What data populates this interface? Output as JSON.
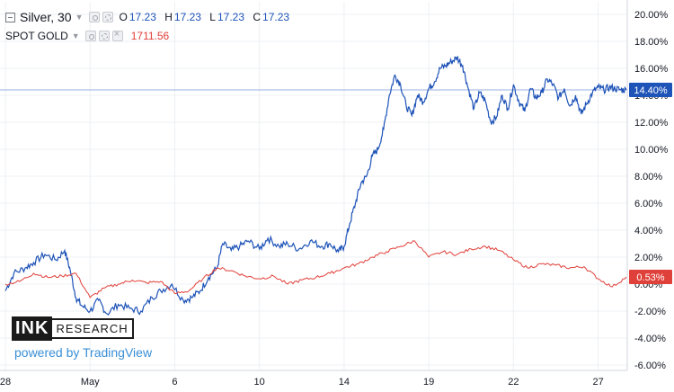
{
  "legend": {
    "silver": {
      "symbol": "Silver, 30",
      "o_label": "O",
      "o": "17.23",
      "h_label": "H",
      "h": "17.23",
      "l_label": "L",
      "l": "17.23",
      "c_label": "C",
      "c": "17.23"
    },
    "gold": {
      "symbol": "SPOT GOLD",
      "value": "1711.56"
    }
  },
  "watermark": {
    "brand_ink": "INK",
    "brand_research": "RESEARCH",
    "powered": "powered by TradingView"
  },
  "colors": {
    "silver": "#1e53b8",
    "gold": "#e0403a",
    "grid": "#eef0f3",
    "axis_text": "#131722"
  },
  "chart_data": {
    "type": "line",
    "y_unit": "%",
    "ylim": [
      -6,
      20
    ],
    "grid": true,
    "y_ticks": [
      "20.00%",
      "18.00%",
      "16.00%",
      "14.00%",
      "12.00%",
      "10.00%",
      "8.00%",
      "6.00%",
      "4.00%",
      "2.00%",
      "0.00%",
      "-2.00%",
      "-4.00%",
      "-6.00%"
    ],
    "y_tick_values": [
      20,
      18,
      16,
      14,
      12,
      10,
      8,
      6,
      4,
      2,
      0,
      -2,
      -4,
      -6
    ],
    "x_ticks": [
      "28",
      "May",
      "6",
      "10",
      "14",
      "19",
      "22",
      "27"
    ],
    "x_tick_values": [
      0,
      3,
      6,
      9,
      12,
      15,
      18,
      21
    ],
    "xlim": [
      0,
      22
    ],
    "series": [
      {
        "name": "Silver, 30",
        "color": "#1e53b8",
        "last_label": "14.40%",
        "last_value": 14.4,
        "x": [
          0,
          0.3,
          0.7,
          1.0,
          1.4,
          1.8,
          2.1,
          2.3,
          2.5,
          2.7,
          3.0,
          3.3,
          3.6,
          4.0,
          4.4,
          4.8,
          5.2,
          5.5,
          5.9,
          6.3,
          6.6,
          6.9,
          7.2,
          7.5,
          7.7,
          8.0,
          8.3,
          8.6,
          9.0,
          9.3,
          9.7,
          10.0,
          10.4,
          10.8,
          11.2,
          11.5,
          11.8,
          12.0,
          12.2,
          12.4,
          12.6,
          12.8,
          13.0,
          13.2,
          13.4,
          13.6,
          13.8,
          14.0,
          14.2,
          14.4,
          14.6,
          14.8,
          15.0,
          15.2,
          15.4,
          15.6,
          15.8,
          16.0,
          16.2,
          16.4,
          16.6,
          16.8,
          17.0,
          17.2,
          17.4,
          17.6,
          17.8,
          18.0,
          18.2,
          18.4,
          18.6,
          18.8,
          19.0,
          19.2,
          19.4,
          19.6,
          19.8,
          20.0,
          20.2,
          20.4,
          20.6,
          20.8,
          21.0,
          21.2,
          21.4,
          21.6,
          21.8,
          22.0
        ],
        "values": [
          -0.5,
          0.8,
          1.2,
          1.6,
          2.2,
          1.8,
          2.5,
          1.0,
          -1.0,
          -1.6,
          -2.0,
          -1.2,
          -2.2,
          -1.5,
          -1.8,
          -2.0,
          -1.0,
          -0.5,
          0.0,
          -1.2,
          -1.0,
          -0.5,
          0.5,
          1.2,
          3.0,
          2.5,
          2.8,
          3.2,
          2.6,
          3.4,
          2.8,
          3.0,
          2.6,
          3.2,
          2.8,
          3.0,
          2.4,
          2.8,
          4.5,
          6.0,
          7.5,
          8.0,
          9.5,
          10.0,
          11.5,
          14.0,
          15.5,
          14.8,
          13.2,
          12.5,
          14.0,
          13.5,
          14.5,
          15.0,
          16.0,
          16.2,
          16.5,
          16.8,
          16.2,
          14.5,
          13.0,
          14.2,
          13.6,
          12.0,
          12.4,
          14.0,
          13.0,
          14.8,
          13.5,
          12.8,
          14.5,
          13.8,
          14.2,
          15.2,
          14.8,
          13.8,
          14.5,
          13.2,
          14.0,
          12.6,
          13.4,
          14.2,
          14.6,
          14.4,
          14.6,
          14.5,
          14.4,
          14.4
        ]
      },
      {
        "name": "SPOT GOLD",
        "color": "#e0403a",
        "last_label": "0.53%",
        "last_value": 0.53,
        "x": [
          0,
          0.5,
          1.0,
          1.5,
          2.0,
          2.5,
          3.0,
          3.5,
          4.0,
          4.5,
          5.0,
          5.5,
          6.0,
          6.5,
          7.0,
          7.5,
          8.0,
          8.5,
          9.0,
          9.5,
          10.0,
          10.5,
          11.0,
          11.5,
          12.0,
          12.5,
          13.0,
          13.5,
          14.0,
          14.5,
          15.0,
          15.5,
          16.0,
          16.5,
          17.0,
          17.5,
          18.0,
          18.5,
          19.0,
          19.5,
          20.0,
          20.5,
          21.0,
          21.5,
          22.0
        ],
        "values": [
          0.0,
          0.2,
          0.8,
          0.5,
          0.6,
          0.8,
          -1.0,
          -0.3,
          0.0,
          0.3,
          0.1,
          0.2,
          -0.7,
          -0.5,
          0.4,
          1.2,
          1.0,
          0.6,
          0.4,
          0.6,
          0.0,
          0.3,
          0.5,
          0.8,
          1.2,
          1.5,
          2.0,
          2.4,
          2.8,
          3.2,
          2.0,
          2.4,
          2.2,
          2.6,
          2.8,
          2.5,
          1.8,
          1.2,
          1.5,
          1.4,
          1.2,
          1.3,
          0.4,
          -0.2,
          0.53
        ]
      }
    ]
  }
}
